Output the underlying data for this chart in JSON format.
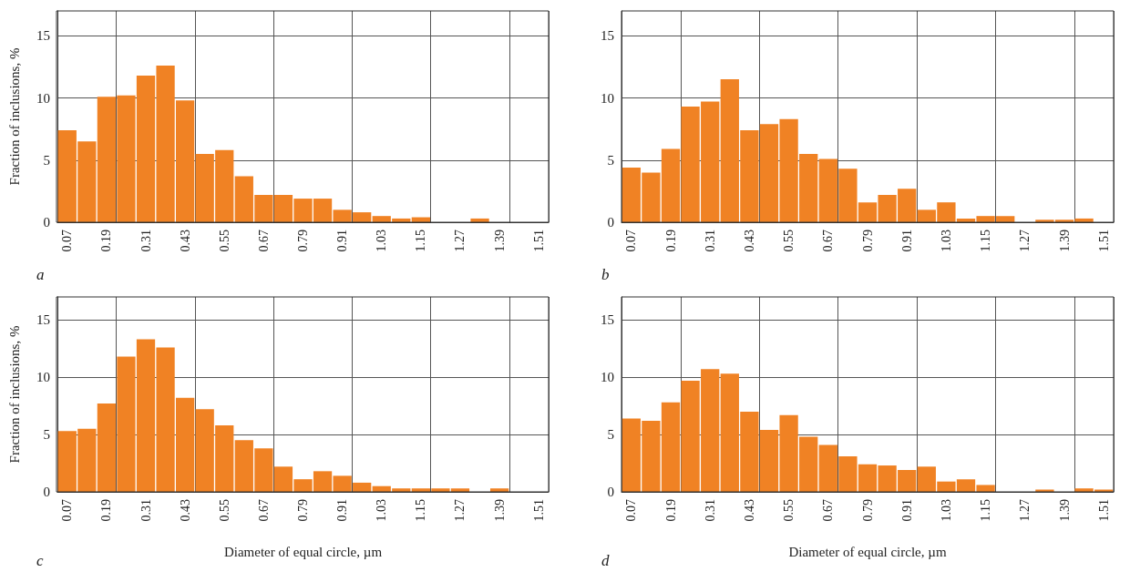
{
  "chart_data": [
    {
      "type": "bar",
      "ylabel": "Fraction of inclusions, %",
      "annotations": [
        "a"
      ],
      "categories": [
        "0.07",
        null,
        "0.19",
        null,
        "0.31",
        null,
        "0.43",
        null,
        "0.55",
        null,
        "0.67",
        null,
        "0.79",
        null,
        "0.91",
        null,
        "1.03",
        null,
        "1.15",
        null,
        "1.27",
        null,
        "1.39",
        null,
        "1.51"
      ],
      "color": "#f08224",
      "ylim": [
        0,
        17
      ],
      "yticks": [
        0,
        5,
        10,
        15
      ],
      "grid": true,
      "values": [
        7.4,
        6.5,
        10.1,
        10.2,
        11.8,
        12.6,
        9.8,
        5.5,
        5.8,
        3.7,
        2.2,
        2.2,
        1.9,
        1.9,
        1.0,
        0.8,
        0.5,
        0.3,
        0.4,
        0,
        0,
        0.3,
        0,
        0,
        0
      ]
    },
    {
      "type": "bar",
      "annotations": [
        "b"
      ],
      "categories": [
        "0.07",
        null,
        "0.19",
        null,
        "0.31",
        null,
        "0.43",
        null,
        "0.55",
        null,
        "0.67",
        null,
        "0.79",
        null,
        "0.91",
        null,
        "1.03",
        null,
        "1.15",
        null,
        "1.27",
        null,
        "1.39",
        null,
        "1.51"
      ],
      "color": "#f08224",
      "ylim": [
        0,
        17
      ],
      "yticks": [
        0,
        5,
        10,
        15
      ],
      "grid": true,
      "values": [
        4.4,
        4.0,
        5.9,
        9.3,
        9.7,
        11.5,
        7.4,
        7.9,
        8.3,
        5.5,
        5.1,
        4.3,
        1.6,
        2.2,
        2.7,
        1.0,
        1.6,
        0.3,
        0.5,
        0.5,
        0,
        0.2,
        0.2,
        0.3,
        0
      ]
    },
    {
      "type": "bar",
      "ylabel": "Fraction of inclusions, %",
      "xlabel": "Diameter of equal circle, µm",
      "annotations": [
        "c"
      ],
      "categories": [
        "0.07",
        null,
        "0.19",
        null,
        "0.31",
        null,
        "0.43",
        null,
        "0.55",
        null,
        "0.67",
        null,
        "0.79",
        null,
        "0.91",
        null,
        "1.03",
        null,
        "1.15",
        null,
        "1.27",
        null,
        "1.39",
        null,
        "1.51"
      ],
      "color": "#f08224",
      "ylim": [
        0,
        17
      ],
      "yticks": [
        0,
        5,
        10,
        15
      ],
      "grid": true,
      "values": [
        5.3,
        5.5,
        7.7,
        11.8,
        13.3,
        12.6,
        8.2,
        7.2,
        5.8,
        4.5,
        3.8,
        2.2,
        1.1,
        1.8,
        1.4,
        0.8,
        0.5,
        0.3,
        0.3,
        0.3,
        0.3,
        0,
        0.3,
        0,
        0
      ]
    },
    {
      "type": "bar",
      "xlabel": "Diameter of equal circle, µm",
      "annotations": [
        "d"
      ],
      "categories": [
        "0.07",
        null,
        "0.19",
        null,
        "0.31",
        null,
        "0.43",
        null,
        "0.55",
        null,
        "0.67",
        null,
        "0.79",
        null,
        "0.91",
        null,
        "1.03",
        null,
        "1.15",
        null,
        "1.27",
        null,
        "1.39",
        null,
        "1.51"
      ],
      "color": "#f08224",
      "ylim": [
        0,
        17
      ],
      "yticks": [
        0,
        5,
        10,
        15
      ],
      "grid": true,
      "values": [
        6.4,
        6.2,
        7.8,
        9.7,
        10.7,
        10.3,
        7.0,
        5.4,
        6.7,
        4.8,
        4.1,
        3.1,
        2.4,
        2.3,
        1.9,
        2.2,
        0.9,
        1.1,
        0.6,
        0,
        0,
        0.2,
        0,
        0.3,
        0.2
      ]
    }
  ]
}
